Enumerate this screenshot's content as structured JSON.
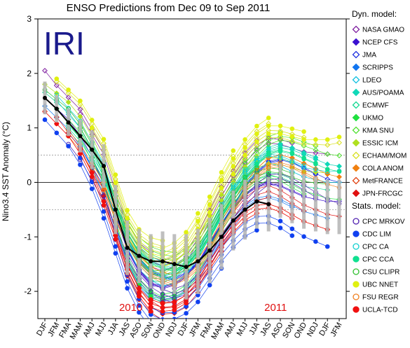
{
  "chart_data": {
    "type": "scatter",
    "title": "ENSO Predictions from Dec 09 to Sep 2011",
    "watermark": "IRI",
    "ylabel": "Nino3.4 SST Anomaly (°C)",
    "xlabel": "",
    "ylim": [
      -2.5,
      3
    ],
    "y_ticks": [
      -2,
      -1,
      0,
      1,
      2,
      3
    ],
    "reference_lines": [
      -0.5,
      0.5
    ],
    "grid": false,
    "legend_position": "right",
    "categories": [
      "DJF",
      "JFM",
      "FMA",
      "MAM",
      "AMJ",
      "MJJ",
      "JJA",
      "JAS",
      "ASO",
      "SON",
      "OND",
      "NDJ",
      "DJF",
      "JFM",
      "FMA",
      "MAM",
      "AMJ",
      "MJJ",
      "JJA",
      "JAS",
      "ASO",
      "SON",
      "OND",
      "NDJ",
      "DJF",
      "JFM"
    ],
    "year_labels": [
      {
        "text": "2010",
        "category_index": 7.3
      },
      {
        "text": "2011",
        "category_index": 19.6
      }
    ],
    "legend_headers": {
      "dynamical": "Dyn. model:",
      "statistical": "Stats. model:"
    },
    "observed": {
      "name": "observed",
      "color": "#000000",
      "values": [
        1.55,
        1.35,
        1.1,
        0.85,
        0.6,
        0.3,
        -0.5,
        -1.2,
        -1.35,
        -1.45,
        -1.45,
        -1.5,
        -1.55,
        -1.45,
        -1.25,
        -1.0,
        -0.7,
        -0.5,
        -0.35,
        -0.4
      ]
    },
    "series": [
      {
        "name": "NASA GMAO",
        "group": "dyn",
        "marker": "diamond-open",
        "color": "#7f1fa0",
        "curve": "A",
        "start_offset": 0.25
      },
      {
        "name": "NCEP CFS",
        "group": "dyn",
        "marker": "diamond",
        "color": "#3a10d0",
        "curve": "B",
        "start_offset": 0.05
      },
      {
        "name": "JMA",
        "group": "dyn",
        "marker": "diamond-open",
        "color": "#1f30e0",
        "curve": "C",
        "start_offset": -0.05
      },
      {
        "name": "SCRIPPS",
        "group": "dyn",
        "marker": "diamond",
        "color": "#1075f0",
        "curve": "B",
        "start_offset": -0.1
      },
      {
        "name": "LDEO",
        "group": "dyn",
        "marker": "diamond-open",
        "color": "#10c0e0",
        "curve": "A",
        "start_offset": 0.0
      },
      {
        "name": "AUS/POAMA",
        "group": "dyn",
        "marker": "diamond",
        "color": "#10d8b8",
        "curve": "C",
        "start_offset": 0.1
      },
      {
        "name": "ECMWF",
        "group": "dyn",
        "marker": "diamond-open",
        "color": "#10d890",
        "curve": "B",
        "start_offset": 0.15
      },
      {
        "name": "UKMO",
        "group": "dyn",
        "marker": "diamond",
        "color": "#20e040",
        "curve": "A",
        "start_offset": -0.15
      },
      {
        "name": "KMA SNU",
        "group": "dyn",
        "marker": "diamond-open",
        "color": "#50e030",
        "curve": "C",
        "start_offset": 0.2
      },
      {
        "name": "ESSIC ICM",
        "group": "dyn",
        "marker": "diamond",
        "color": "#b0e020",
        "curve": "B",
        "start_offset": 0.3
      },
      {
        "name": "ECHAM/MOM",
        "group": "dyn",
        "marker": "diamond-open",
        "color": "#d8e020",
        "curve": "A",
        "start_offset": 0.35
      },
      {
        "name": "COLA ANOM",
        "group": "dyn",
        "marker": "diamond",
        "color": "#f08010",
        "curve": "C",
        "start_offset": 0.0
      },
      {
        "name": "MetFRANCE",
        "group": "dyn",
        "marker": "diamond-open",
        "color": "#e04010",
        "curve": "B",
        "start_offset": -0.2
      },
      {
        "name": "JPN-FRCGC",
        "group": "dyn",
        "marker": "diamond",
        "color": "#e01010",
        "curve": "A",
        "start_offset": -0.3
      },
      {
        "name": "CPC MRKOV",
        "group": "stat",
        "marker": "circle-open",
        "color": "#5020b0",
        "curve": "C",
        "start_offset": -0.25
      },
      {
        "name": "CDC LIM",
        "group": "stat",
        "marker": "circle",
        "color": "#1040f0",
        "curve": "B",
        "start_offset": -0.35
      },
      {
        "name": "CPC CA",
        "group": "stat",
        "marker": "circle-open",
        "color": "#10d0d0",
        "curve": "A",
        "start_offset": 0.1
      },
      {
        "name": "CPC CCA",
        "group": "stat",
        "marker": "circle",
        "color": "#10e090",
        "curve": "C",
        "start_offset": 0.05
      },
      {
        "name": "CSU CLIPR",
        "group": "stat",
        "marker": "circle-open",
        "color": "#30c030",
        "curve": "B",
        "start_offset": 0.2
      },
      {
        "name": "UBC NNET",
        "group": "stat",
        "marker": "circle",
        "color": "#e0f010",
        "curve": "A",
        "start_offset": 0.4
      },
      {
        "name": "FSU REGR",
        "group": "stat",
        "marker": "circle-open",
        "color": "#f08020",
        "curve": "C",
        "start_offset": -0.1
      },
      {
        "name": "UCLA-TCD",
        "group": "stat",
        "marker": "circle",
        "color": "#f01010",
        "curve": "B",
        "start_offset": -0.2
      }
    ],
    "curve_shapes": {
      "A": [
        1.8,
        1.5,
        1.25,
        1.0,
        0.6,
        0.2,
        -0.5,
        -1.2,
        -1.6,
        -1.8,
        -1.9,
        -1.85,
        -1.7,
        -1.4,
        -1.0,
        -0.6,
        -0.25,
        0.05,
        0.25,
        0.35,
        0.3,
        0.2,
        0.1,
        0.05,
        0.0,
        0.0
      ],
      "B": [
        1.5,
        1.3,
        1.1,
        0.8,
        0.4,
        -0.1,
        -0.7,
        -1.3,
        -1.7,
        -1.95,
        -2.0,
        -1.95,
        -1.8,
        -1.55,
        -1.2,
        -0.85,
        -0.55,
        -0.3,
        -0.15,
        -0.1,
        -0.15,
        -0.25,
        -0.35,
        -0.4,
        -0.45,
        -0.45
      ],
      "C": [
        1.3,
        1.15,
        0.95,
        0.7,
        0.35,
        0.0,
        -0.55,
        -1.0,
        -1.35,
        -1.55,
        -1.65,
        -1.7,
        -1.6,
        -1.4,
        -1.1,
        -0.7,
        -0.35,
        0.0,
        0.25,
        0.45,
        0.5,
        0.45,
        0.35,
        0.25,
        0.15,
        0.1
      ]
    },
    "spread": {
      "color": "#b8b8b8",
      "half_width": [
        0.3,
        0.25,
        0.25,
        0.3,
        0.35,
        0.4,
        0.45,
        0.5,
        0.5,
        0.5,
        0.55,
        0.55,
        0.6,
        0.6,
        0.6,
        0.6,
        0.55,
        0.55,
        0.5,
        0.5,
        0.5,
        0.5,
        0.5,
        0.5,
        0.5,
        0.5
      ]
    }
  }
}
